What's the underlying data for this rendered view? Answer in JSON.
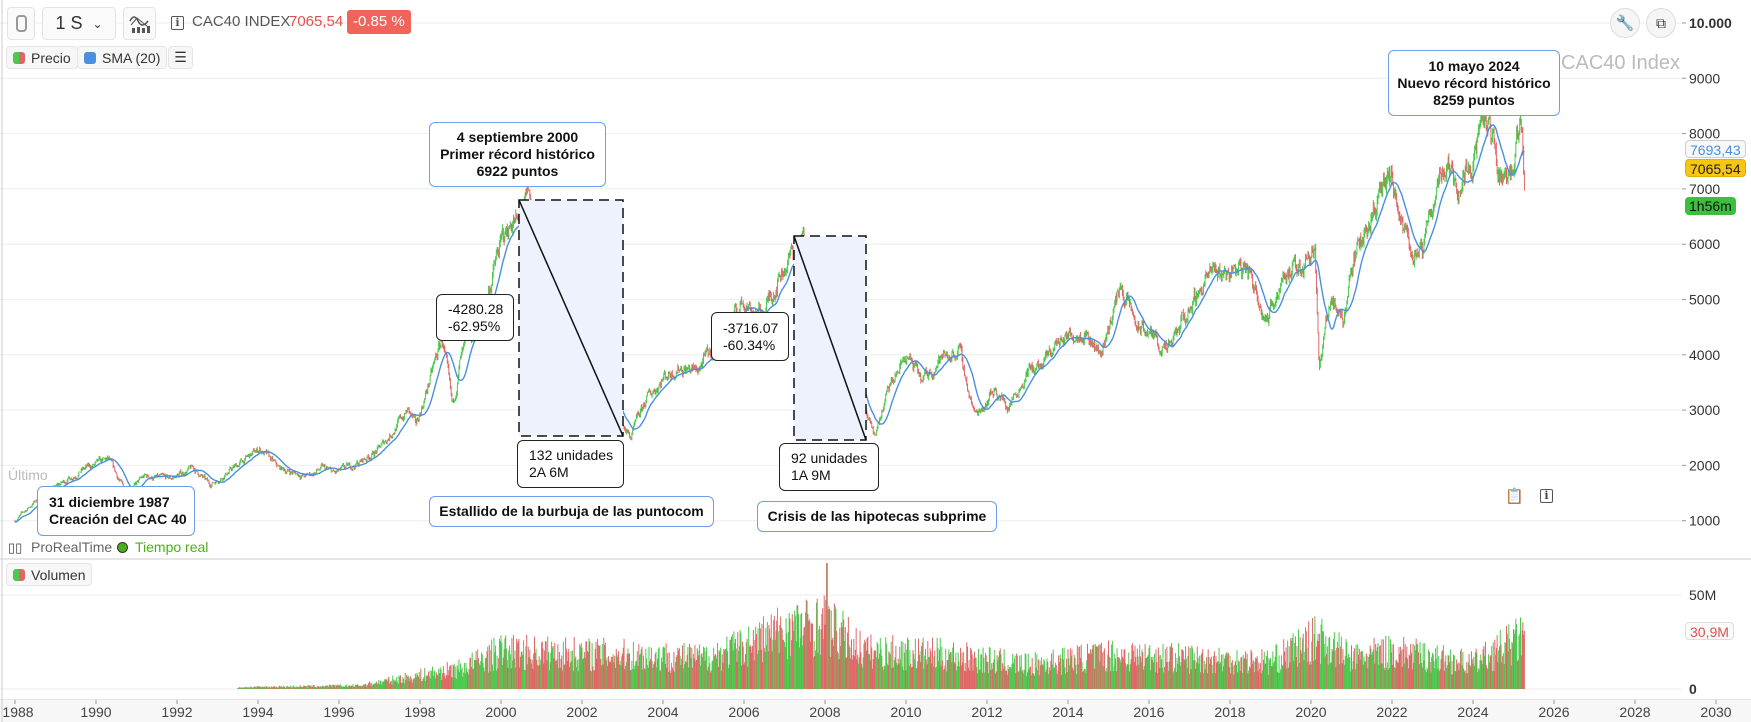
{
  "toolbar": {
    "timeframe": "1 S",
    "instrument": "CAC40 INDEX",
    "last_price": "7065,54",
    "change": "-0.85 %",
    "icons": [
      "link-icon",
      "chevron-down-icon",
      "indicators-icon",
      "info-icon",
      "wrench-icon",
      "window-icon"
    ]
  },
  "legend": {
    "price": "Precio",
    "sma": "SMA (20)",
    "volume": "Volumen"
  },
  "watermark": "CAC40 Index",
  "footer": {
    "source": "ProRealTime",
    "realtime": "Tiempo real",
    "ghost_text": "Último"
  },
  "price_tags": {
    "sma": "7693,43",
    "last": "7065,54",
    "countdown": "1h56m"
  },
  "volume_tag": "30,9M",
  "annotations": {
    "creation": [
      "31 diciembre 1987",
      "Creación del CAC 40"
    ],
    "record_2000": [
      "4 septiembre 2000",
      "Primer récord histórico",
      "6922 puntos"
    ],
    "record_2024": [
      "10 mayo 2024",
      "Nuevo récord histórico",
      "8259 puntos"
    ],
    "dotcom_title": "Estallido de la burbuja de las puntocom",
    "subprime_title": "Crisis de las hipotecas subprime",
    "dotcom_change": [
      "-4280.28",
      "-62.95%"
    ],
    "dotcom_duration": [
      "132 unidades",
      "2A 6M"
    ],
    "subprime_change": [
      "-3716.07",
      "-60.34%"
    ],
    "subprime_duration": [
      "92 unidades",
      "1A 9M"
    ]
  },
  "colors": {
    "up": "#4cc94c",
    "down": "#e06666",
    "sma": "#4a8fe0",
    "annotation_border": "#6d9eeb",
    "last_tag": "#f7c514",
    "countdown_tag": "#3cbf3c",
    "change_badge": "#f0645a"
  },
  "chart_data": [
    {
      "type": "candlestick",
      "series": [
        {
          "name": "Precio",
          "anchors": [
            [
              1988.0,
              1000
            ],
            [
              1988.5,
              1350
            ],
            [
              1989.0,
              1600
            ],
            [
              1989.6,
              1900
            ],
            [
              1990.3,
              2100
            ],
            [
              1990.75,
              1500
            ],
            [
              1991.2,
              1800
            ],
            [
              1991.8,
              1750
            ],
            [
              1992.4,
              1950
            ],
            [
              1992.8,
              1650
            ],
            [
              1993.3,
              1900
            ],
            [
              1994.05,
              2300
            ],
            [
              1994.5,
              1950
            ],
            [
              1995.2,
              1800
            ],
            [
              1995.6,
              1950
            ],
            [
              1995.9,
              1850
            ],
            [
              1996.5,
              2050
            ],
            [
              1997.0,
              2300
            ],
            [
              1997.7,
              3000
            ],
            [
              1997.9,
              2700
            ],
            [
              1998.55,
              4300
            ],
            [
              1998.8,
              3000
            ],
            [
              1999.0,
              3900
            ],
            [
              1999.5,
              4600
            ],
            [
              1999.95,
              5900
            ],
            [
              2000.3,
              6500
            ],
            [
              2000.5,
              6200
            ],
            [
              2000.67,
              6922
            ],
            [
              2001.1,
              5500
            ],
            [
              2001.4,
              5400
            ],
            [
              2001.7,
              4000
            ],
            [
              2002.0,
              4700
            ],
            [
              2002.3,
              4600
            ],
            [
              2002.7,
              3100
            ],
            [
              2003.2,
              2500
            ],
            [
              2003.6,
              3200
            ],
            [
              2004.0,
              3600
            ],
            [
              2004.4,
              3800
            ],
            [
              2004.8,
              3700
            ],
            [
              2005.5,
              4300
            ],
            [
              2006.0,
              5000
            ],
            [
              2006.45,
              4700
            ],
            [
              2006.9,
              5500
            ],
            [
              2007.45,
              6100
            ],
            [
              2007.65,
              5500
            ],
            [
              2007.9,
              5700
            ],
            [
              2008.2,
              4800
            ],
            [
              2008.5,
              4600
            ],
            [
              2008.8,
              3300
            ],
            [
              2009.2,
              2500
            ],
            [
              2009.6,
              3400
            ],
            [
              2010.0,
              4000
            ],
            [
              2010.4,
              3500
            ],
            [
              2010.8,
              3900
            ],
            [
              2011.3,
              4100
            ],
            [
              2011.7,
              2900
            ],
            [
              2012.2,
              3400
            ],
            [
              2012.5,
              3050
            ],
            [
              2013.0,
              3700
            ],
            [
              2013.4,
              3800
            ],
            [
              2013.7,
              4200
            ],
            [
              2014.4,
              4500
            ],
            [
              2014.8,
              4000
            ],
            [
              2015.3,
              5250
            ],
            [
              2015.7,
              4500
            ],
            [
              2016.1,
              4350
            ],
            [
              2016.45,
              4000
            ],
            [
              2016.9,
              4700
            ],
            [
              2017.4,
              5400
            ],
            [
              2018.4,
              5600
            ],
            [
              2018.95,
              4650
            ],
            [
              2019.3,
              5500
            ],
            [
              2019.7,
              5500
            ],
            [
              2020.1,
              6100
            ],
            [
              2020.2,
              3700
            ],
            [
              2020.5,
              5100
            ],
            [
              2020.8,
              4600
            ],
            [
              2021.0,
              5600
            ],
            [
              2021.5,
              6600
            ],
            [
              2022.0,
              7200
            ],
            [
              2022.2,
              6300
            ],
            [
              2022.75,
              5700
            ],
            [
              2023.0,
              6800
            ],
            [
              2023.3,
              7500
            ],
            [
              2023.7,
              7100
            ],
            [
              2023.9,
              7500
            ],
            [
              2024.37,
              8259
            ],
            [
              2024.6,
              7400
            ],
            [
              2024.8,
              7200
            ],
            [
              2025.0,
              7500
            ],
            [
              2025.2,
              8200
            ],
            [
              2025.28,
              7065.54
            ]
          ]
        },
        {
          "name": "SMA (20)",
          "period": 20
        }
      ],
      "x_ticks": [
        "1988",
        "1990",
        "1992",
        "1994",
        "1996",
        "1998",
        "2000",
        "2002",
        "2004",
        "2006",
        "2008",
        "2010",
        "2012",
        "2014",
        "2016",
        "2018",
        "2020",
        "2022",
        "2024",
        "2026",
        "2028",
        "2030"
      ],
      "y_ticks": [
        "10.000",
        "9000",
        "8000",
        "7000",
        "6000",
        "5000",
        "4000",
        "3000",
        "2000",
        "1000"
      ],
      "ylim": [
        0,
        10000
      ],
      "xlim": [
        1988,
        2030
      ],
      "grid": true
    },
    {
      "type": "bar",
      "series": [
        {
          "name": "Volumen",
          "anchors": [
            [
              1993.5,
              1
            ],
            [
              1996.5,
              2
            ],
            [
              1997.5,
              6
            ],
            [
              1999.0,
              12
            ],
            [
              2000.0,
              22
            ],
            [
              2003.0,
              20
            ],
            [
              2005.0,
              18
            ],
            [
              2006.0,
              25
            ],
            [
              2007.0,
              35
            ],
            [
              2008.0,
              38
            ],
            [
              2009.0,
              22
            ],
            [
              2011.0,
              20
            ],
            [
              2013.0,
              14
            ],
            [
              2015.0,
              20
            ],
            [
              2017.0,
              18
            ],
            [
              2019.0,
              16
            ],
            [
              2020.2,
              30
            ],
            [
              2021.0,
              18
            ],
            [
              2022.0,
              22
            ],
            [
              2024.0,
              15
            ],
            [
              2025.28,
              30.9
            ]
          ]
        }
      ],
      "y_ticks": [
        "50M",
        "0"
      ],
      "unit": "M"
    }
  ]
}
